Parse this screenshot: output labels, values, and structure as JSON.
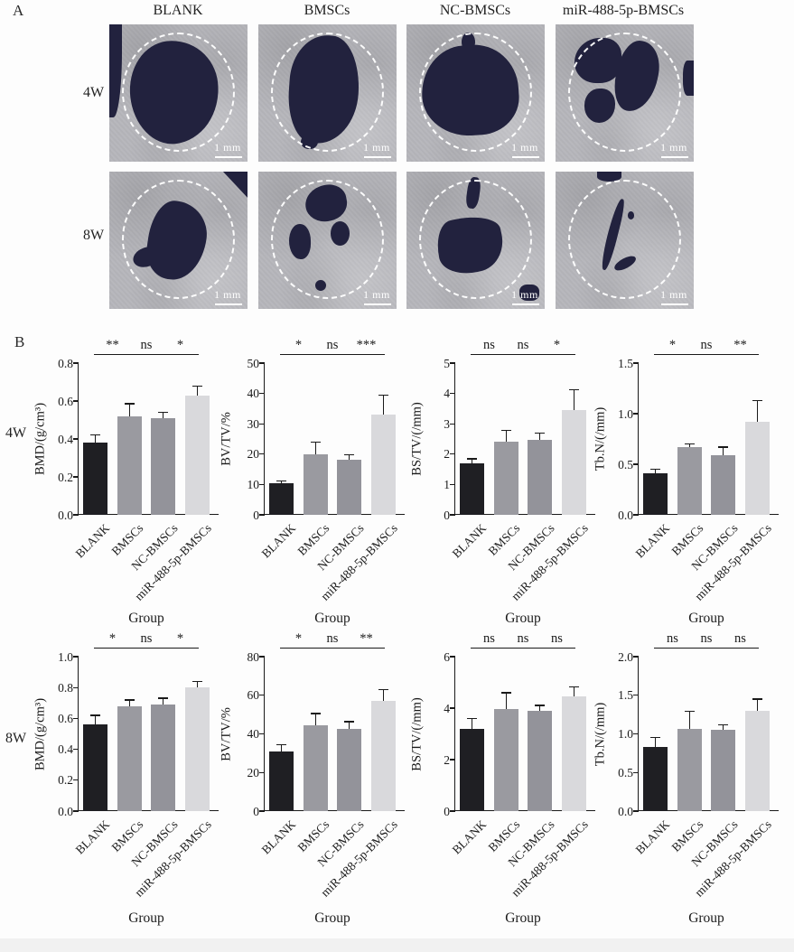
{
  "figure": {
    "panel_a": {
      "label": "A",
      "column_headers": [
        "BLANK",
        "BMSCs",
        "NC-BMSCs",
        "miR-488-5p-BMSCs"
      ],
      "row_labels": [
        "4W",
        "8W"
      ],
      "scale_bar_label": "1 mm"
    },
    "panel_b": {
      "label": "B",
      "row_labels": [
        "4W",
        "8W"
      ]
    },
    "colors": {
      "bar_fill": [
        "#1f1f23",
        "#9a9aa0",
        "#93939a",
        "#d9d9dc"
      ],
      "defect_navy": "#22223e",
      "bone_gray": "#b6b6bb",
      "axis_ink": "#1a1a1a"
    }
  },
  "chart_data": [
    {
      "id": "bmd-4w",
      "type": "bar",
      "row": "4W",
      "ylabel": "BMD/(g/cm³)",
      "xlabel": "Group",
      "ylim": [
        0,
        0.8
      ],
      "yticks": [
        "0.0",
        "0.2",
        "0.4",
        "0.6",
        "0.8"
      ],
      "categories": [
        "BLANK",
        "BMSCs",
        "NC-BMSCs",
        "miR-488-5p-BMSCs"
      ],
      "values": [
        0.38,
        0.52,
        0.51,
        0.63
      ],
      "errors": [
        0.04,
        0.065,
        0.03,
        0.05
      ],
      "significance": [
        "**",
        "ns",
        "*"
      ]
    },
    {
      "id": "bvtv-4w",
      "type": "bar",
      "row": "4W",
      "ylabel": "BV/TV/%",
      "xlabel": "Group",
      "ylim": [
        0,
        50
      ],
      "yticks": [
        "0",
        "10",
        "20",
        "30",
        "40",
        "50"
      ],
      "categories": [
        "BLANK",
        "BMSCs",
        "NC-BMSCs",
        "miR-488-5p-BMSCs"
      ],
      "values": [
        10.5,
        19.8,
        18.2,
        33
      ],
      "errors": [
        0.6,
        4.2,
        1.5,
        6.5
      ],
      "significance": [
        "*",
        "ns",
        "***"
      ]
    },
    {
      "id": "bstv-4w",
      "type": "bar",
      "row": "4W",
      "ylabel": "BS/TV/(/mm)",
      "xlabel": "Group",
      "ylim": [
        0,
        5
      ],
      "yticks": [
        "0",
        "1",
        "2",
        "3",
        "4",
        "5"
      ],
      "categories": [
        "BLANK",
        "BMSCs",
        "NC-BMSCs",
        "miR-488-5p-BMSCs"
      ],
      "values": [
        1.7,
        2.42,
        2.47,
        3.45
      ],
      "errors": [
        0.15,
        0.36,
        0.22,
        0.67
      ],
      "significance": [
        "ns",
        "ns",
        "*"
      ]
    },
    {
      "id": "tbn-4w",
      "type": "bar",
      "row": "4W",
      "ylabel": "Tb.N/(/mm)",
      "xlabel": "Group",
      "ylim": [
        0,
        1.5
      ],
      "yticks": [
        "0.0",
        "0.5",
        "1.0",
        "1.5"
      ],
      "categories": [
        "BLANK",
        "BMSCs",
        "NC-BMSCs",
        "miR-488-5p-BMSCs"
      ],
      "values": [
        0.41,
        0.67,
        0.59,
        0.92
      ],
      "errors": [
        0.04,
        0.03,
        0.08,
        0.21
      ],
      "significance": [
        "*",
        "ns",
        "**"
      ]
    },
    {
      "id": "bmd-8w",
      "type": "bar",
      "row": "8W",
      "ylabel": "BMD/(g/cm³)",
      "xlabel": "Group",
      "ylim": [
        0,
        1.0
      ],
      "yticks": [
        "0.0",
        "0.2",
        "0.4",
        "0.6",
        "0.8",
        "1.0"
      ],
      "categories": [
        "BLANK",
        "BMSCs",
        "NC-BMSCs",
        "miR-488-5p-BMSCs"
      ],
      "values": [
        0.56,
        0.68,
        0.69,
        0.8
      ],
      "errors": [
        0.06,
        0.04,
        0.04,
        0.04
      ],
      "significance": [
        "*",
        "ns",
        "*"
      ]
    },
    {
      "id": "bvtv-8w",
      "type": "bar",
      "row": "8W",
      "ylabel": "BV/TV/%",
      "xlabel": "Group",
      "ylim": [
        0,
        80
      ],
      "yticks": [
        "0",
        "20",
        "40",
        "60",
        "80"
      ],
      "categories": [
        "BLANK",
        "BMSCs",
        "NC-BMSCs",
        "miR-488-5p-BMSCs"
      ],
      "values": [
        31,
        44.5,
        42.5,
        57
      ],
      "errors": [
        3.5,
        6,
        3.8,
        6
      ],
      "significance": [
        "*",
        "ns",
        "**"
      ]
    },
    {
      "id": "bstv-8w",
      "type": "bar",
      "row": "8W",
      "ylabel": "BS/TV/(/mm)",
      "xlabel": "Group",
      "ylim": [
        0,
        6
      ],
      "yticks": [
        "0",
        "2",
        "4",
        "6"
      ],
      "categories": [
        "BLANK",
        "BMSCs",
        "NC-BMSCs",
        "miR-488-5p-BMSCs"
      ],
      "values": [
        3.2,
        3.95,
        3.9,
        4.45
      ],
      "errors": [
        0.4,
        0.65,
        0.2,
        0.38
      ],
      "significance": [
        "ns",
        "ns",
        "ns"
      ]
    },
    {
      "id": "tbn-8w",
      "type": "bar",
      "row": "8W",
      "ylabel": "Tb.N/(/mm)",
      "xlabel": "Group",
      "ylim": [
        0,
        2.0
      ],
      "yticks": [
        "0.0",
        "0.5",
        "1.0",
        "1.5",
        "2.0"
      ],
      "categories": [
        "BLANK",
        "BMSCs",
        "NC-BMSCs",
        "miR-488-5p-BMSCs"
      ],
      "values": [
        0.83,
        1.07,
        1.05,
        1.3
      ],
      "errors": [
        0.12,
        0.22,
        0.07,
        0.15
      ],
      "significance": [
        "ns",
        "ns",
        "ns"
      ]
    }
  ]
}
